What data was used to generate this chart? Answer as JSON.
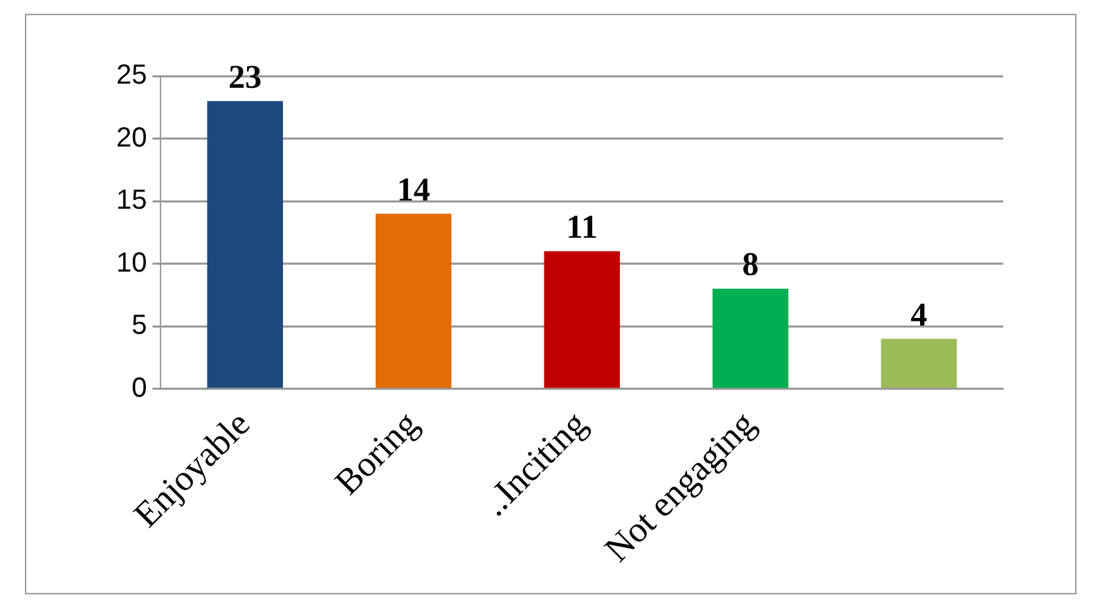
{
  "chart_data": {
    "type": "bar",
    "categories": [
      "Enjoyable",
      "Boring",
      "..Inciting",
      "Not engaging",
      null
    ],
    "values": [
      23,
      14,
      11,
      8,
      4
    ],
    "colors": [
      "#1f497d",
      "#e36c09",
      "#c00000",
      "#00b050",
      "#9bbb59"
    ],
    "ylim": [
      0,
      25
    ],
    "yticks": [
      0,
      5,
      10,
      15,
      20,
      25
    ],
    "grid": "y",
    "data_labels": true,
    "legend": false
  }
}
